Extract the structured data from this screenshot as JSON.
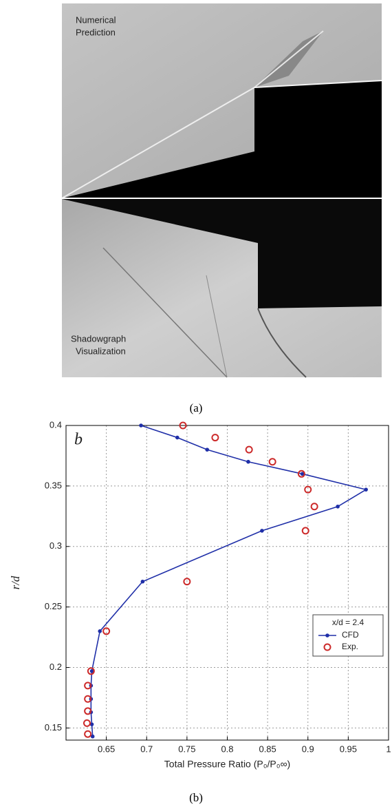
{
  "figure": {
    "panel_a": {
      "top_label": [
        "Numerical",
        "Prediction"
      ],
      "bottom_label": [
        "Shadowgraph",
        "Visualization"
      ],
      "caption": "(a)"
    },
    "panel_b": {
      "caption": "(b)"
    }
  },
  "chart_data": {
    "type": "line",
    "panel_letter": "b",
    "x_label": "Total Pressure Ratio (P₀/P₀∞)",
    "y_label": "r/d",
    "legend_title": "x/d = 2.4",
    "legend": "lower right",
    "grid": true,
    "xlim": [
      0.6,
      1.0
    ],
    "xticks": [
      0.65,
      0.7,
      0.75,
      0.8,
      0.85,
      0.9,
      0.95,
      1
    ],
    "ylim": [
      0.14,
      0.4
    ],
    "yticks": [
      0.15,
      0.2,
      0.25,
      0.3,
      0.35,
      0.4
    ],
    "series": [
      {
        "name": "CFD",
        "color": "#1f2fa8",
        "marker": "dot",
        "line": true,
        "x": [
          0.693,
          0.738,
          0.775,
          0.826,
          0.893,
          0.972,
          0.937,
          0.843,
          0.695,
          0.642,
          0.632,
          0.631,
          0.631,
          0.631,
          0.632,
          0.633
        ],
        "values": [
          0.4,
          0.39,
          0.38,
          0.37,
          0.36,
          0.347,
          0.333,
          0.313,
          0.271,
          0.23,
          0.197,
          0.185,
          0.174,
          0.163,
          0.153,
          0.143
        ]
      },
      {
        "name": "Exp.",
        "color": "#cc2a2a",
        "marker": "circle",
        "line": false,
        "x": [
          0.745,
          0.785,
          0.827,
          0.856,
          0.892,
          0.9,
          0.908,
          0.897,
          0.75,
          0.65,
          0.631,
          0.627,
          0.627,
          0.627,
          0.626,
          0.627
        ],
        "values": [
          0.4,
          0.39,
          0.38,
          0.37,
          0.36,
          0.347,
          0.333,
          0.313,
          0.271,
          0.23,
          0.197,
          0.185,
          0.174,
          0.164,
          0.154,
          0.145
        ]
      }
    ]
  }
}
